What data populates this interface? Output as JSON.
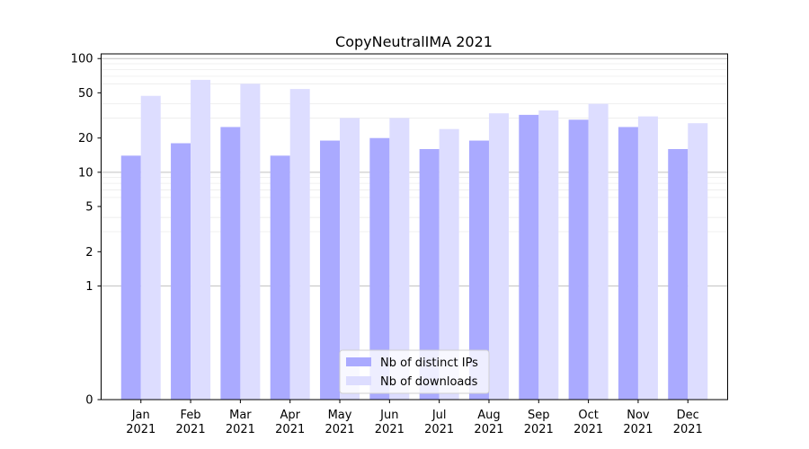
{
  "chart_data": {
    "type": "bar",
    "title": "CopyNeutralIMA 2021",
    "xlabel": "",
    "ylabel": "",
    "categories": [
      [
        "Jan",
        "2021"
      ],
      [
        "Feb",
        "2021"
      ],
      [
        "Mar",
        "2021"
      ],
      [
        "Apr",
        "2021"
      ],
      [
        "May",
        "2021"
      ],
      [
        "Jun",
        "2021"
      ],
      [
        "Jul",
        "2021"
      ],
      [
        "Aug",
        "2021"
      ],
      [
        "Sep",
        "2021"
      ],
      [
        "Oct",
        "2021"
      ],
      [
        "Nov",
        "2021"
      ],
      [
        "Dec",
        "2021"
      ]
    ],
    "series": [
      {
        "name": "Nb of distinct IPs",
        "color": "#aaaaff",
        "values": [
          14,
          18,
          25,
          14,
          19,
          20,
          16,
          19,
          32,
          29,
          25,
          16
        ]
      },
      {
        "name": "Nb of downloads",
        "color": "#ddddff",
        "values": [
          47,
          65,
          60,
          54,
          30,
          30,
          24,
          33,
          35,
          40,
          31,
          27
        ]
      }
    ],
    "yscale": "symlog",
    "ylim": [
      0,
      110
    ],
    "yticks": [
      0,
      1,
      2,
      5,
      10,
      20,
      50,
      100
    ],
    "legend_position": "lower center"
  }
}
